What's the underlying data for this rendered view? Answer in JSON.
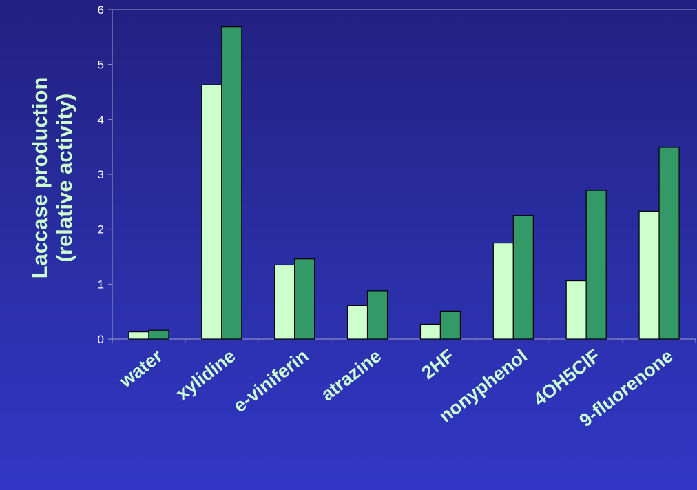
{
  "chart_data": {
    "type": "bar",
    "title": "",
    "xlabel": "",
    "ylabel_lines": [
      "Laccase production",
      "(relative activity)"
    ],
    "categories": [
      "water",
      "xylidine",
      "e-viniferin",
      "atrazine",
      "2HF",
      "nonyphenol",
      "4OH5ClF",
      "9-fluorenone"
    ],
    "series": [
      {
        "values": [
          0.13,
          4.63,
          1.35,
          0.61,
          0.27,
          1.75,
          1.06,
          2.33
        ]
      },
      {
        "values": [
          0.16,
          5.69,
          1.46,
          0.88,
          0.51,
          2.25,
          2.71,
          3.49
        ]
      }
    ],
    "ylim": [
      0,
      6
    ],
    "yticks": [
      0,
      1,
      2,
      3,
      4,
      5,
      6
    ],
    "grid": false,
    "legend": "none",
    "colors": {
      "series": [
        "#ccffcc",
        "#339966"
      ],
      "bar_stroke": "#000000",
      "axis": "#a0a0c8",
      "label": "#ccffcc",
      "tick_label": "#ffffff"
    }
  }
}
